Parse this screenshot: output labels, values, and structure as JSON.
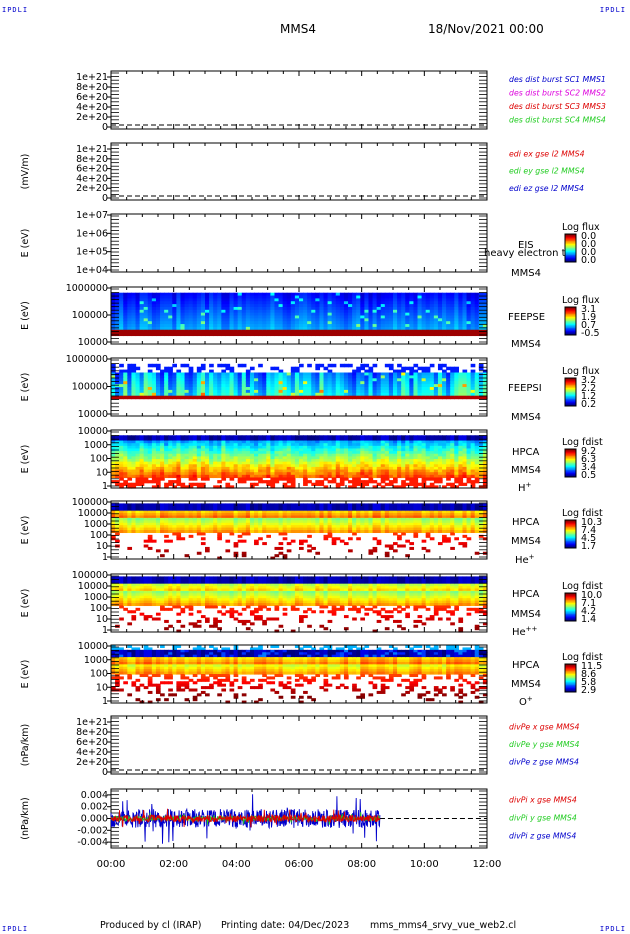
{
  "corner_tag": "IPDLI",
  "header": {
    "spacecraft": "MMS4",
    "date": "18/Nov/2021 00:00"
  },
  "footer": {
    "produced_by": "Produced by cl (IRAP)",
    "printing_date": "Printing date: 04/Dec/2023",
    "script": "mms_mms4_srvy_vue_web2.cl"
  },
  "chart_data": [
    {
      "type": "line",
      "id": "des-dist-burst",
      "ylabel": "",
      "ylim": [
        0,
        1.2e+21
      ],
      "yticks": [
        "1e+21",
        "8e+20",
        "6e+20",
        "4e+20",
        "2e+20",
        "0"
      ],
      "baseline": "dashed at 0",
      "legend": [
        {
          "name": "des dist burst SC1 MMS1",
          "color": "#0000cc"
        },
        {
          "name": "des dist burst SC2 MMS2",
          "color": "#dd00dd"
        },
        {
          "name": "des dist burst SC3 MMS3",
          "color": "#dd0000"
        },
        {
          "name": "des dist burst SC4 MMS4",
          "color": "#22cc22"
        }
      ],
      "series": []
    },
    {
      "type": "line",
      "id": "edi-e-field",
      "ylabel": "(mV/m)",
      "ylim": [
        0,
        1.2e+21
      ],
      "yticks": [
        "1e+21",
        "8e+20",
        "6e+20",
        "4e+20",
        "2e+20",
        "0"
      ],
      "baseline": "dashed at 0",
      "legend": [
        {
          "name": "edi ex gse l2 MMS4",
          "color": "#dd0000"
        },
        {
          "name": "edi ey gse l2 MMS4",
          "color": "#22cc22"
        },
        {
          "name": "edi ez gse l2 MMS4",
          "color": "#0000cc"
        }
      ],
      "series": []
    },
    {
      "type": "heatmap",
      "id": "eis",
      "ylabel": "E (eV)",
      "scale": "log",
      "yticks": [
        "1e+07",
        "1e+06",
        "1e+05",
        "1e+04"
      ],
      "labels": [
        "EIS",
        "MMS4"
      ],
      "overlay_text": "heavy electron to",
      "colorbar": {
        "title": "Log flux",
        "ticks": [
          "0.0",
          "0.0",
          "0.0",
          "0.0"
        ]
      }
    },
    {
      "type": "heatmap",
      "id": "feepse",
      "ylabel": "E (eV)",
      "scale": "log",
      "yticks": [
        "1000000",
        "100000",
        "10000"
      ],
      "labels": [
        "FEEPSE",
        "MMS4"
      ],
      "colorbar": {
        "title": "Log flux",
        "ticks": [
          "3.1",
          "1.9",
          "0.7",
          "-0.5"
        ]
      }
    },
    {
      "type": "heatmap",
      "id": "feepsi",
      "ylabel": "E (eV)",
      "scale": "log",
      "yticks": [
        "1000000",
        "100000",
        "10000"
      ],
      "labels": [
        "FEEPSI",
        "MMS4"
      ],
      "colorbar": {
        "title": "Log flux",
        "ticks": [
          "3.2",
          "2.2",
          "1.2",
          "0.2"
        ]
      }
    },
    {
      "type": "heatmap",
      "id": "hpca-h",
      "ylabel": "E (eV)",
      "scale": "log",
      "yticks": [
        "10000",
        "1000",
        "100",
        "10",
        "1"
      ],
      "labels": [
        "HPCA",
        "MMS4"
      ],
      "species": {
        "base": "H",
        "sup": "+"
      },
      "colorbar": {
        "title": "Log fdist",
        "ticks": [
          "9.2",
          "6.3",
          "3.4",
          "0.5"
        ]
      }
    },
    {
      "type": "heatmap",
      "id": "hpca-he",
      "ylabel": "E (eV)",
      "scale": "log",
      "yticks": [
        "100000",
        "10000",
        "1000",
        "100",
        "10",
        "1"
      ],
      "labels": [
        "HPCA",
        "MMS4"
      ],
      "species": {
        "base": "He",
        "sup": "+"
      },
      "colorbar": {
        "title": "Log fdist",
        "ticks": [
          "10.3",
          "7.4",
          "4.5",
          "1.7"
        ]
      }
    },
    {
      "type": "heatmap",
      "id": "hpca-he2",
      "ylabel": "E (eV)",
      "scale": "log",
      "yticks": [
        "100000",
        "10000",
        "1000",
        "100",
        "10",
        "1"
      ],
      "labels": [
        "HPCA",
        "MMS4"
      ],
      "species": {
        "base": "He",
        "sup": "++"
      },
      "colorbar": {
        "title": "Log fdist",
        "ticks": [
          "10.0",
          "7.1",
          "4.2",
          "1.4"
        ]
      }
    },
    {
      "type": "heatmap",
      "id": "hpca-o",
      "ylabel": "E (eV)",
      "scale": "log",
      "yticks": [
        "10000",
        "1000",
        "100",
        "10",
        "1"
      ],
      "labels": [
        "HPCA",
        "MMS4"
      ],
      "species": {
        "base": "O",
        "sup": "+"
      },
      "colorbar": {
        "title": "Log fdist",
        "ticks": [
          "11.5",
          "8.6",
          "5.8",
          "2.9"
        ]
      }
    },
    {
      "type": "line",
      "id": "divpe",
      "ylabel": "(nPa/km)",
      "ylim": [
        0,
        1.2e+21
      ],
      "yticks": [
        "1e+21",
        "8e+20",
        "6e+20",
        "4e+20",
        "2e+20",
        "0"
      ],
      "baseline": "dashed at 0",
      "legend": [
        {
          "name": "divPe x gse MMS4",
          "color": "#dd0000"
        },
        {
          "name": "divPe y gse MMS4",
          "color": "#22cc22"
        },
        {
          "name": "divPe z gse MMS4",
          "color": "#0000cc"
        }
      ],
      "series": []
    },
    {
      "type": "line",
      "id": "divpi",
      "ylabel": "(nPa/km)",
      "ylim": [
        -0.005,
        0.005
      ],
      "yticks": [
        "0.004",
        "0.002",
        "0.000",
        "-0.002",
        "-0.004"
      ],
      "data_end_time": "08:35",
      "baseline": "dashed at 0",
      "legend": [
        {
          "name": "divPi x gse MMS4",
          "color": "#dd0000"
        },
        {
          "name": "divPi y gse MMS4",
          "color": "#22cc22"
        },
        {
          "name": "divPi z gse MMS4",
          "color": "#0000cc"
        }
      ],
      "series": [
        {
          "name": "divPi z gse MMS4",
          "amplitude": 0.004
        },
        {
          "name": "divPi y gse MMS4",
          "amplitude": 0.001
        },
        {
          "name": "divPi x gse MMS4",
          "amplitude": 0.0015
        }
      ]
    }
  ],
  "time_axis": {
    "ticks": [
      "00:00",
      "02:00",
      "04:00",
      "06:00",
      "08:00",
      "10:00",
      "12:00"
    ]
  }
}
